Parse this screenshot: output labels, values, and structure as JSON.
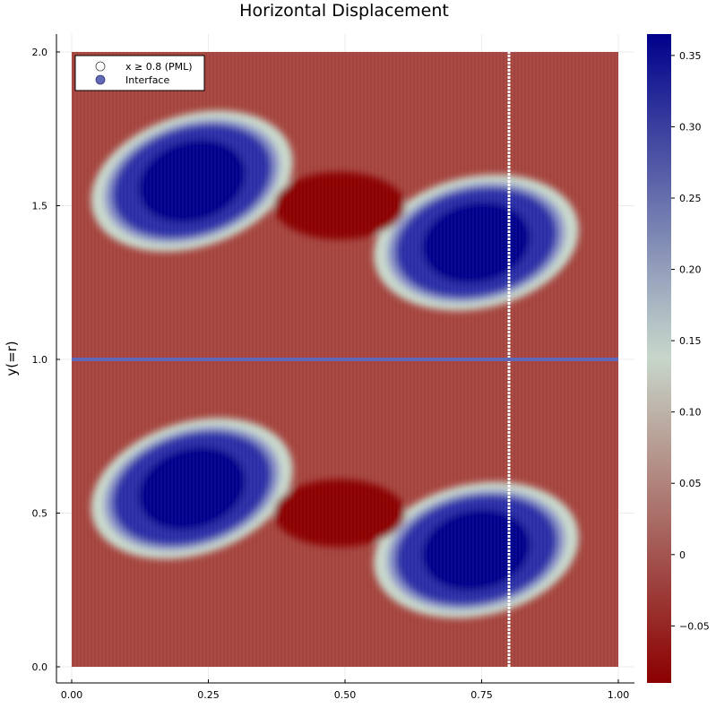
{
  "chart_data": {
    "type": "heatmap",
    "title": "Horizontal Displacement",
    "xlabel": "",
    "ylabel": "y(=r)",
    "xlim": [
      -0.02,
      1.03
    ],
    "ylim": [
      -0.05,
      2.06
    ],
    "x_ticks": [
      0.0,
      0.25,
      0.5,
      0.75,
      1.0
    ],
    "x_tick_labels": [
      "0.00",
      "0.25",
      "0.50",
      "0.75",
      "1.00"
    ],
    "y_ticks": [
      0.0,
      0.5,
      1.0,
      1.5,
      2.0
    ],
    "y_tick_labels": [
      "0.0",
      "0.5",
      "1.0",
      "1.5",
      "2.0"
    ],
    "grid": true,
    "legend_position": "top-left",
    "colorbar": {
      "colormap": "red-white-blue",
      "min": -0.09,
      "max": 0.365,
      "ticks": [
        -0.05,
        0,
        0.05,
        0.1,
        0.15,
        0.2,
        0.25,
        0.3,
        0.35
      ],
      "tick_labels": [
        "−0.05",
        "0",
        "0.05",
        "0.10",
        "0.15",
        "0.20",
        "0.25",
        "0.30",
        "0.35"
      ],
      "colors": [
        "#8b0000",
        "#c8d8cc",
        "#00008b"
      ]
    },
    "field": {
      "domain_x": [
        0,
        1
      ],
      "domain_y": [
        0,
        2
      ],
      "features": [
        {
          "x": 0.22,
          "y": 1.58,
          "value": 0.36
        },
        {
          "x": 0.74,
          "y": 1.38,
          "value": 0.36
        },
        {
          "x": 0.49,
          "y": 1.5,
          "value": -0.09
        },
        {
          "x": 0.22,
          "y": 0.58,
          "value": 0.36
        },
        {
          "x": 0.74,
          "y": 0.38,
          "value": 0.36
        },
        {
          "x": 0.49,
          "y": 0.5,
          "value": -0.09
        }
      ]
    },
    "series": [
      {
        "name": "x ≥ 0.8 (PML)",
        "x": [
          0.8,
          0.8
        ],
        "y": [
          0,
          2
        ],
        "color": "#ffffff"
      },
      {
        "name": "Interface",
        "x": [
          0,
          1
        ],
        "y": [
          1.0,
          1.0
        ],
        "color": "#6068b8"
      }
    ]
  }
}
